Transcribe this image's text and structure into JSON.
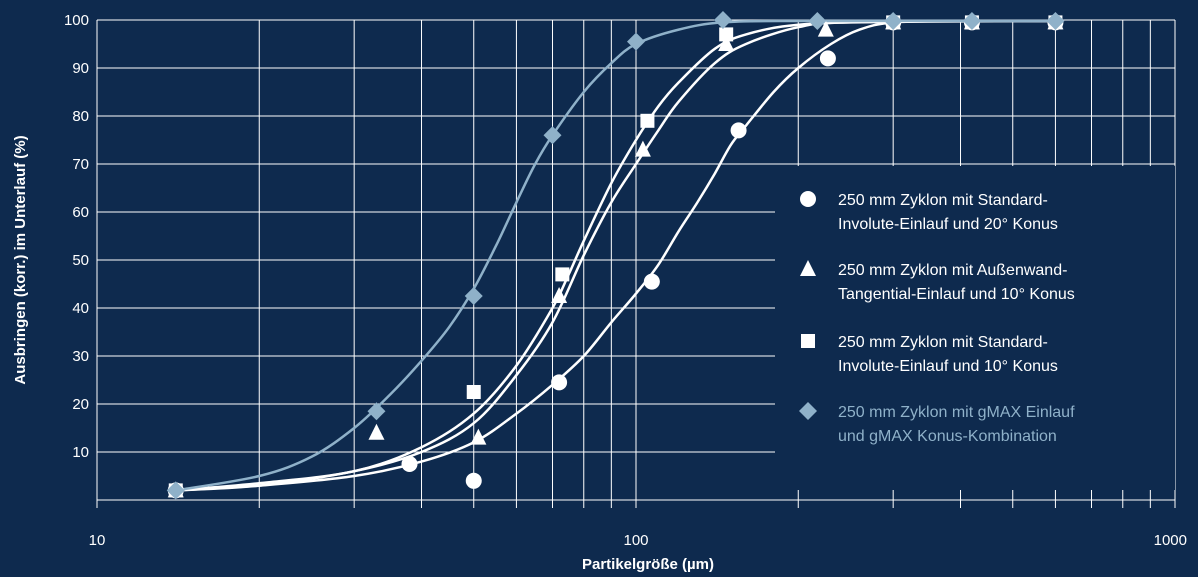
{
  "chart_data": {
    "type": "scatter",
    "xlabel": "Partikelgröße (µm)",
    "ylabel": "Ausbringen (korr.) im Unterlauf (%)",
    "x_scale": "log",
    "xlim": [
      10,
      1000
    ],
    "ylim": [
      0,
      100
    ],
    "x_tick_labels": [
      "10",
      "100",
      "1000"
    ],
    "y_ticks": [
      10,
      20,
      30,
      40,
      50,
      60,
      70,
      80,
      90,
      100
    ],
    "grid": true,
    "legend_position": "right",
    "colors": {
      "background": "#0e2a4e",
      "white": "#ffffff",
      "gmax": "#8fb1c9"
    },
    "series": [
      {
        "name": "250 mm Zyklon mit Standard-Involute-Einlauf und 20° Konus",
        "legend_lines": [
          "250 mm Zyklon mit Standard-",
          "Involute-Einlauf und 20° Konus"
        ],
        "marker": "circle",
        "color": "#ffffff",
        "points": [
          [
            14,
            2
          ],
          [
            38,
            7.5
          ],
          [
            50,
            4
          ],
          [
            72,
            24.5
          ],
          [
            107,
            45.5
          ],
          [
            155,
            77
          ],
          [
            227,
            92
          ],
          [
            300,
            99.5
          ],
          [
            420,
            99.5
          ],
          [
            600,
            99.5
          ]
        ],
        "curve": [
          [
            14,
            2
          ],
          [
            20,
            3
          ],
          [
            30,
            5
          ],
          [
            40,
            8
          ],
          [
            50,
            12
          ],
          [
            60,
            18
          ],
          [
            70,
            24
          ],
          [
            80,
            30
          ],
          [
            90,
            37
          ],
          [
            100,
            43
          ],
          [
            110,
            49
          ],
          [
            120,
            56
          ],
          [
            130,
            62
          ],
          [
            140,
            68
          ],
          [
            150,
            74
          ],
          [
            160,
            78
          ],
          [
            180,
            85
          ],
          [
            200,
            90
          ],
          [
            230,
            95
          ],
          [
            260,
            98
          ],
          [
            300,
            99.5
          ],
          [
            400,
            99.8
          ],
          [
            600,
            99.8
          ]
        ]
      },
      {
        "name": "250 mm Zyklon mit Außenwand-Tangential-Einlauf und 10° Konus",
        "legend_lines": [
          "250 mm Zyklon mit Außenwand-",
          "Tangential-Einlauf und 10° Konus"
        ],
        "marker": "triangle",
        "color": "#ffffff",
        "points": [
          [
            14,
            2
          ],
          [
            33,
            14
          ],
          [
            51,
            13
          ],
          [
            72,
            42.5
          ],
          [
            103,
            73
          ],
          [
            147,
            95
          ],
          [
            225,
            98
          ],
          [
            300,
            99.5
          ],
          [
            420,
            99.5
          ],
          [
            600,
            99.5
          ]
        ],
        "curve": [
          [
            14,
            2
          ],
          [
            20,
            3
          ],
          [
            30,
            6
          ],
          [
            40,
            10
          ],
          [
            50,
            16
          ],
          [
            60,
            26
          ],
          [
            70,
            37
          ],
          [
            80,
            51
          ],
          [
            90,
            62
          ],
          [
            100,
            70
          ],
          [
            110,
            77
          ],
          [
            120,
            83
          ],
          [
            140,
            91
          ],
          [
            160,
            95
          ],
          [
            200,
            98.5
          ],
          [
            250,
            99.5
          ],
          [
            600,
            99.8
          ]
        ]
      },
      {
        "name": "250 mm Zyklon mit Standard-Involute-Einlauf und 10° Konus",
        "legend_lines": [
          "250 mm Zyklon mit Standard-",
          "Involute-Einlauf und 10° Konus"
        ],
        "marker": "square",
        "color": "#ffffff",
        "points": [
          [
            14,
            2
          ],
          [
            50,
            22.5
          ],
          [
            73,
            47
          ],
          [
            105,
            79
          ],
          [
            147,
            97
          ],
          [
            300,
            99.5
          ],
          [
            420,
            99.5
          ],
          [
            600,
            99.5
          ]
        ],
        "curve": [
          [
            14,
            2
          ],
          [
            20,
            3.5
          ],
          [
            30,
            6
          ],
          [
            40,
            11
          ],
          [
            50,
            18
          ],
          [
            60,
            28
          ],
          [
            70,
            40
          ],
          [
            75,
            47
          ],
          [
            80,
            54
          ],
          [
            90,
            66
          ],
          [
            100,
            75
          ],
          [
            110,
            82
          ],
          [
            120,
            87
          ],
          [
            140,
            94
          ],
          [
            160,
            97
          ],
          [
            200,
            99
          ],
          [
            300,
            99.7
          ],
          [
            600,
            99.8
          ]
        ]
      },
      {
        "name": "250 mm Zyklon mit gMAX Einlauf und gMAX Konus-Kombination",
        "legend_lines": [
          "250 mm Zyklon mit gMAX Einlauf",
          "und gMAX Konus-Kombination"
        ],
        "marker": "diamond",
        "color": "#8fb1c9",
        "points": [
          [
            14,
            2
          ],
          [
            33,
            18.5
          ],
          [
            50,
            42.5
          ],
          [
            70,
            76
          ],
          [
            100,
            95.5
          ],
          [
            145,
            100
          ],
          [
            217,
            99.8
          ],
          [
            300,
            99.8
          ],
          [
            420,
            99.8
          ],
          [
            600,
            99.8
          ]
        ],
        "curve": [
          [
            14,
            2
          ],
          [
            20,
            5
          ],
          [
            25,
            9
          ],
          [
            30,
            15
          ],
          [
            35,
            22
          ],
          [
            40,
            29
          ],
          [
            45,
            36
          ],
          [
            50,
            44
          ],
          [
            55,
            53
          ],
          [
            60,
            62
          ],
          [
            65,
            70
          ],
          [
            70,
            76
          ],
          [
            80,
            85
          ],
          [
            90,
            91
          ],
          [
            100,
            95
          ],
          [
            120,
            98
          ],
          [
            145,
            99.5
          ],
          [
            200,
            99.8
          ],
          [
            600,
            99.8
          ]
        ]
      }
    ]
  }
}
